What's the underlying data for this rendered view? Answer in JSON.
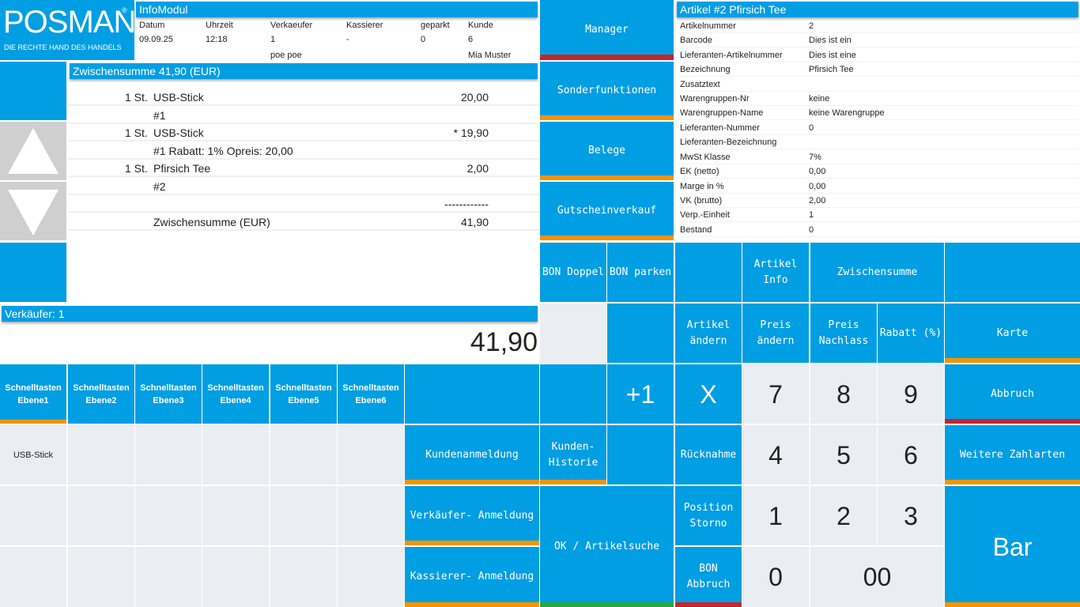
{
  "logo": {
    "name": "POSMAN",
    "reg": "®",
    "tagline": "DIE RECHTE HAND DES HANDELS"
  },
  "info": {
    "title": "InfoModul",
    "headers": [
      "Datum",
      "Uhrzeit",
      "Verkaeufer",
      "Kassierer",
      "geparkt",
      "Kunde"
    ],
    "values": [
      "09.09.25",
      "12:18",
      "1",
      "-",
      "0",
      "6"
    ],
    "names": [
      "",
      "",
      "poe poe",
      "",
      "",
      "Mia Muster"
    ]
  },
  "subtotal_header": "Zwischensumme 41,90 (EUR)",
  "receipt": [
    {
      "qty": "1 St.",
      "text": "USB-Stick",
      "price": "20,00"
    },
    {
      "qty": "",
      "text": "#1",
      "price": ""
    },
    {
      "qty": "1 St.",
      "text": "USB-Stick",
      "price": "* 19,90"
    },
    {
      "qty": "",
      "text": "#1 Rabatt: 1% Opreis: 20,00",
      "price": ""
    },
    {
      "qty": "1 St.",
      "text": "Pfirsich Tee",
      "price": "2,00"
    },
    {
      "qty": "",
      "text": "#2",
      "price": ""
    },
    {
      "qty": "",
      "text": "",
      "price": "------------"
    },
    {
      "qty": "",
      "text": "Zwischensumme (EUR)",
      "price": "41,90"
    }
  ],
  "seller": "Verkäufer: 1",
  "total": "41,90",
  "article": {
    "title": "Artikel #2 Pfirsich Tee",
    "rows": [
      {
        "label": "Artikelnummer",
        "value": "2"
      },
      {
        "label": "Barcode",
        "value": "Dies ist ein"
      },
      {
        "label": "Lieferanten-Artikelnummer",
        "value": "Dies ist eine"
      },
      {
        "label": "Bezeichnung",
        "value": "Pfirsich Tee"
      },
      {
        "label": "Zusatztext",
        "value": ""
      },
      {
        "label": "Warengruppen-Nr",
        "value": "keine"
      },
      {
        "label": "Warengruppen-Name",
        "value": "keine Warengruppe"
      },
      {
        "label": "Lieferanten-Nummer",
        "value": "0"
      },
      {
        "label": "Lieferanten-Bezeichnung",
        "value": ""
      },
      {
        "label": "MwSt Klasse",
        "value": "7%"
      },
      {
        "label": "EK (netto)",
        "value": "0,00"
      },
      {
        "label": "Marge in %",
        "value": "0,00"
      },
      {
        "label": "VK (brutto)",
        "value": "2,00"
      },
      {
        "label": "Verp.-Einheit",
        "value": "1"
      },
      {
        "label": "Bestand",
        "value": "0"
      }
    ]
  },
  "side_menu": {
    "manager": "Manager",
    "sonder": "Sonderfunktionen",
    "belege": "Belege",
    "gutschein": "Gutscheinverkauf"
  },
  "schnelltasten": [
    "Schnelltasten\nEbene1",
    "Schnelltasten\nEbene2",
    "Schnelltasten\nEbene3",
    "Schnelltasten\nEbene4",
    "Schnelltasten\nEbene5",
    "Schnelltasten\nEbene6"
  ],
  "quick_item": "USB-Stick",
  "buttons": {
    "bon_doppel": "BON Doppel",
    "bon_parken": "BON parken",
    "artikel_info": "Artikel\nInfo",
    "zwischensumme": "Zwischensumme",
    "artikel_aendern": "Artikel\nändern",
    "preis_aendern": "Preis\nändern",
    "preis_nachlass": "Preis\nNachlass",
    "rabatt": "Rabatt (%)",
    "karte": "Karte",
    "plus1": "+1",
    "x": "X",
    "abbruch": "Abbruch",
    "kundenanmeldung": "Kundenanmeldung",
    "kunden_historie": "Kunden-\nHistorie",
    "ruecknahme": "Rücknahme",
    "weitere": "Weitere Zahlarten",
    "verkaeufer_anmeldung": "Verkäufer- Anmeldung",
    "ok_artikelsuche": "OK / Artikelsuche",
    "position_storno": "Position\nStorno",
    "bar": "Bar",
    "kassierer_anmeldung": "Kassierer- Anmeldung",
    "bon_abbruch": "BON\nAbbruch"
  },
  "numpad": {
    "k7": "7",
    "k8": "8",
    "k9": "9",
    "k4": "4",
    "k5": "5",
    "k6": "6",
    "k1": "1",
    "k2": "2",
    "k3": "3",
    "k0": "0",
    "k00": "00"
  }
}
